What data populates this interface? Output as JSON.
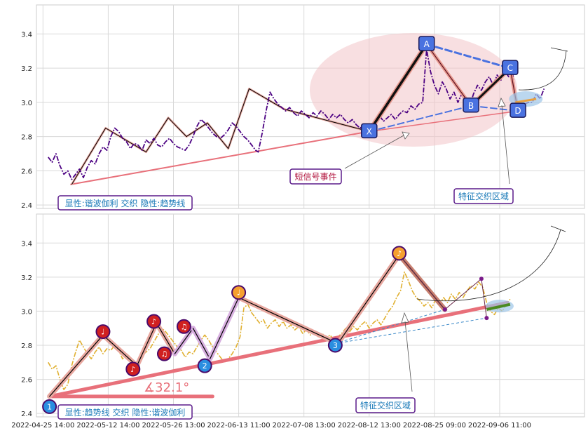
{
  "chart_data": {
    "type": "line",
    "x_tick_labels": [
      "2022-04-25 14:00",
      "2022-05-12 14:00",
      "2022-05-26 13:00",
      "2022-06-13 11:00",
      "2022-07-08 13:00",
      "2022-08-12 13:00",
      "2022-08-25 09:00",
      "2022-09-06 11:00"
    ],
    "y_ticks": [
      2.4,
      2.6,
      2.8,
      3.0,
      3.2,
      3.4
    ],
    "ylim": [
      2.38,
      3.57
    ],
    "grid": true,
    "colors": {
      "top_price": "#4b0082",
      "bottom_price": "#e0b030",
      "trend": "#e8707a",
      "pattern_blue": "#4a72e0",
      "marker_red": "#d02020",
      "marker_orange": "#f5a030",
      "marker_blue": "#2a8ee0",
      "box_border": "#5a1a8a",
      "box_text": "#1a7ab8",
      "annot_text": "#b0103a"
    },
    "panels": [
      {
        "legend": "显性:谐波伽利 交织 隐性:趋势线",
        "annotations": [
          "短信号事件",
          "特征交织区域"
        ],
        "pattern_labels": [
          "X",
          "A",
          "B",
          "C",
          "D"
        ],
        "price": [
          [
            0.4,
            2.68
          ],
          [
            0.7,
            2.65
          ],
          [
            1.0,
            2.7
          ],
          [
            1.3,
            2.63
          ],
          [
            1.6,
            2.58
          ],
          [
            1.9,
            2.6
          ],
          [
            2.2,
            2.55
          ],
          [
            2.5,
            2.58
          ],
          [
            2.8,
            2.61
          ],
          [
            3.1,
            2.56
          ],
          [
            3.4,
            2.62
          ],
          [
            3.7,
            2.66
          ],
          [
            4.0,
            2.64
          ],
          [
            4.3,
            2.7
          ],
          [
            4.6,
            2.74
          ],
          [
            4.9,
            2.72
          ],
          [
            5.2,
            2.8
          ],
          [
            5.5,
            2.85
          ],
          [
            5.8,
            2.83
          ],
          [
            6.1,
            2.79
          ],
          [
            6.4,
            2.77
          ],
          [
            6.7,
            2.73
          ],
          [
            7.0,
            2.76
          ],
          [
            7.3,
            2.75
          ],
          [
            7.6,
            2.72
          ],
          [
            7.9,
            2.78
          ],
          [
            8.2,
            2.76
          ],
          [
            8.5,
            2.79
          ],
          [
            8.8,
            2.75
          ],
          [
            9.1,
            2.74
          ],
          [
            9.4,
            2.77
          ],
          [
            9.7,
            2.79
          ],
          [
            10.0,
            2.76
          ],
          [
            10.3,
            2.74
          ],
          [
            10.6,
            2.73
          ],
          [
            10.9,
            2.72
          ],
          [
            11.2,
            2.75
          ],
          [
            11.5,
            2.8
          ],
          [
            11.8,
            2.86
          ],
          [
            12.1,
            2.9
          ],
          [
            12.4,
            2.88
          ],
          [
            12.7,
            2.85
          ],
          [
            13.0,
            2.82
          ],
          [
            13.3,
            2.8
          ],
          [
            13.6,
            2.79
          ],
          [
            13.9,
            2.81
          ],
          [
            14.2,
            2.84
          ],
          [
            14.5,
            2.88
          ],
          [
            14.8,
            2.86
          ],
          [
            15.1,
            2.83
          ],
          [
            15.4,
            2.8
          ],
          [
            15.7,
            2.78
          ],
          [
            16.0,
            2.75
          ],
          [
            16.3,
            2.72
          ],
          [
            16.5,
            2.71
          ],
          [
            16.8,
            2.82
          ],
          [
            17.1,
            2.95
          ],
          [
            17.4,
            3.06
          ],
          [
            17.7,
            3.02
          ],
          [
            18.0,
            2.99
          ],
          [
            18.3,
            2.97
          ],
          [
            18.6,
            2.95
          ],
          [
            18.9,
            2.97
          ],
          [
            19.2,
            2.94
          ],
          [
            19.5,
            2.92
          ],
          [
            19.8,
            2.95
          ],
          [
            20.1,
            2.93
          ],
          [
            20.4,
            2.91
          ],
          [
            20.7,
            2.94
          ],
          [
            21.0,
            2.92
          ],
          [
            21.3,
            2.95
          ],
          [
            21.6,
            2.93
          ],
          [
            21.9,
            2.9
          ],
          [
            22.2,
            2.93
          ],
          [
            22.5,
            2.91
          ],
          [
            22.8,
            2.93
          ],
          [
            23.1,
            2.9
          ],
          [
            23.4,
            2.88
          ],
          [
            23.7,
            2.9
          ],
          [
            24.0,
            2.87
          ],
          [
            24.3,
            2.85
          ],
          [
            24.6,
            2.87
          ],
          [
            24.9,
            2.84
          ],
          [
            25.2,
            2.86
          ],
          [
            25.5,
            2.88
          ],
          [
            25.8,
            2.92
          ],
          [
            26.1,
            2.89
          ],
          [
            26.4,
            2.91
          ],
          [
            26.7,
            2.93
          ],
          [
            27.0,
            2.9
          ],
          [
            27.3,
            2.93
          ],
          [
            27.6,
            2.95
          ],
          [
            27.9,
            2.94
          ],
          [
            28.2,
            2.98
          ],
          [
            28.5,
            2.96
          ],
          [
            28.8,
            2.99
          ],
          [
            29.1,
            3.0
          ],
          [
            29.4,
            3.31
          ],
          [
            29.7,
            3.18
          ],
          [
            30.0,
            3.1
          ],
          [
            30.3,
            3.05
          ],
          [
            30.6,
            3.12
          ],
          [
            30.9,
            3.08
          ],
          [
            31.2,
            3.02
          ],
          [
            31.5,
            3.06
          ],
          [
            31.8,
            3.0
          ],
          [
            32.1,
            3.05
          ],
          [
            32.4,
            2.99
          ],
          [
            32.7,
            2.98
          ],
          [
            33.0,
            3.05
          ],
          [
            33.3,
            3.1
          ],
          [
            33.6,
            3.07
          ],
          [
            33.9,
            3.12
          ],
          [
            34.2,
            3.15
          ],
          [
            34.5,
            3.1
          ],
          [
            34.8,
            3.16
          ],
          [
            35.1,
            3.13
          ],
          [
            35.4,
            3.18
          ],
          [
            35.7,
            3.15
          ],
          [
            36.0,
            3.17
          ],
          [
            36.3,
            2.98
          ],
          [
            36.6,
            2.96
          ],
          [
            36.9,
            2.99
          ],
          [
            37.2,
            3.0
          ],
          [
            37.5,
            3.0
          ],
          [
            37.8,
            3.05
          ],
          [
            38.1,
            3.02
          ],
          [
            38.4,
            3.08
          ]
        ],
        "zigzag": [
          [
            2.2,
            2.52
          ],
          [
            4.8,
            2.85
          ],
          [
            7.9,
            2.71
          ],
          [
            9.6,
            2.91
          ],
          [
            11.0,
            2.8
          ],
          [
            12.6,
            2.88
          ],
          [
            14.2,
            2.73
          ],
          [
            15.8,
            3.08
          ],
          [
            18.5,
            2.96
          ],
          [
            24.5,
            2.84
          ],
          [
            28.5,
            2.99
          ],
          [
            29.5,
            3.33
          ],
          [
            32.8,
            2.98
          ],
          [
            35.7,
            3.18
          ],
          [
            36.2,
            2.99
          ],
          [
            37.5,
            3.01
          ]
        ],
        "points": {
          "X": [
            25.0,
            2.83
          ],
          "A": [
            29.4,
            3.34
          ],
          "B": [
            32.8,
            2.98
          ],
          "C": [
            35.8,
            3.2
          ],
          "D": [
            36.4,
            2.95
          ]
        },
        "trend": [
          [
            2.1,
            2.52
          ],
          [
            25.0,
            2.83
          ]
        ]
      },
      {
        "legend": "显性:趋势线 交织 隐性:谐波伽利",
        "annotations": [
          "特征交织区域"
        ],
        "angle_label": "∡32.1°",
        "marker_labels": [
          "1",
          "2",
          "3"
        ],
        "note_symbols": [
          "♩",
          "♪",
          "♫"
        ],
        "price": [
          [
            0.4,
            2.7
          ],
          [
            0.7,
            2.66
          ],
          [
            1.0,
            2.68
          ],
          [
            1.3,
            2.6
          ],
          [
            1.6,
            2.54
          ],
          [
            1.9,
            2.57
          ],
          [
            2.2,
            2.68
          ],
          [
            2.5,
            2.76
          ],
          [
            2.8,
            2.83
          ],
          [
            3.1,
            2.79
          ],
          [
            3.4,
            2.75
          ],
          [
            3.7,
            2.72
          ],
          [
            4.0,
            2.76
          ],
          [
            4.3,
            2.79
          ],
          [
            4.6,
            2.75
          ],
          [
            4.9,
            2.78
          ],
          [
            5.2,
            2.77
          ],
          [
            5.5,
            2.8
          ],
          [
            5.8,
            2.77
          ],
          [
            6.1,
            2.72
          ],
          [
            6.4,
            2.75
          ],
          [
            6.7,
            2.73
          ],
          [
            7.0,
            2.69
          ],
          [
            7.3,
            2.71
          ],
          [
            7.6,
            2.74
          ],
          [
            7.9,
            2.76
          ],
          [
            8.2,
            2.78
          ],
          [
            8.5,
            2.82
          ],
          [
            8.8,
            2.86
          ],
          [
            9.1,
            2.9
          ],
          [
            9.4,
            2.88
          ],
          [
            9.7,
            2.85
          ],
          [
            10.0,
            2.82
          ],
          [
            10.3,
            2.79
          ],
          [
            10.6,
            2.77
          ],
          [
            10.9,
            2.73
          ],
          [
            11.2,
            2.76
          ],
          [
            11.5,
            2.75
          ],
          [
            11.8,
            2.79
          ],
          [
            12.1,
            2.83
          ],
          [
            12.4,
            2.86
          ],
          [
            12.7,
            2.83
          ],
          [
            13.0,
            2.79
          ],
          [
            13.3,
            2.76
          ],
          [
            13.6,
            2.73
          ],
          [
            13.9,
            2.7
          ],
          [
            14.2,
            2.72
          ],
          [
            14.5,
            2.75
          ],
          [
            14.8,
            2.79
          ],
          [
            15.1,
            2.85
          ],
          [
            15.4,
            3.02
          ],
          [
            15.7,
            3.04
          ],
          [
            16.0,
            2.99
          ],
          [
            16.3,
            2.96
          ],
          [
            16.6,
            2.93
          ],
          [
            16.9,
            2.95
          ],
          [
            17.2,
            2.9
          ],
          [
            17.5,
            2.93
          ],
          [
            17.8,
            2.95
          ],
          [
            18.1,
            2.91
          ],
          [
            18.4,
            2.94
          ],
          [
            18.7,
            2.9
          ],
          [
            19.0,
            2.92
          ],
          [
            19.3,
            2.89
          ],
          [
            19.6,
            2.91
          ],
          [
            19.9,
            2.87
          ],
          [
            20.2,
            2.89
          ],
          [
            20.5,
            2.86
          ],
          [
            20.8,
            2.88
          ],
          [
            21.1,
            2.85
          ],
          [
            21.4,
            2.87
          ],
          [
            21.7,
            2.84
          ],
          [
            22.0,
            2.86
          ],
          [
            22.3,
            2.83
          ],
          [
            22.6,
            2.85
          ],
          [
            22.9,
            2.87
          ],
          [
            23.2,
            2.9
          ],
          [
            23.5,
            2.88
          ],
          [
            23.8,
            2.91
          ],
          [
            24.1,
            2.89
          ],
          [
            24.4,
            2.92
          ],
          [
            24.7,
            2.94
          ],
          [
            25.0,
            2.9
          ],
          [
            25.3,
            2.93
          ],
          [
            25.6,
            2.95
          ],
          [
            25.9,
            2.92
          ],
          [
            26.2,
            2.96
          ],
          [
            26.5,
            3.0
          ],
          [
            26.8,
            3.03
          ],
          [
            27.1,
            3.08
          ],
          [
            27.4,
            3.12
          ],
          [
            27.7,
            3.23
          ],
          [
            28.0,
            3.18
          ],
          [
            28.3,
            3.12
          ],
          [
            28.6,
            3.08
          ],
          [
            28.9,
            3.06
          ],
          [
            29.2,
            3.03
          ],
          [
            29.5,
            3.05
          ],
          [
            29.8,
            3.02
          ],
          [
            30.1,
            3.07
          ],
          [
            30.4,
            3.04
          ],
          [
            30.7,
            3.08
          ],
          [
            31.0,
            3.05
          ],
          [
            31.3,
            3.1
          ],
          [
            31.6,
            3.07
          ],
          [
            31.9,
            3.11
          ],
          [
            32.2,
            3.08
          ],
          [
            32.5,
            3.12
          ],
          [
            32.8,
            3.15
          ],
          [
            33.1,
            3.13
          ],
          [
            33.4,
            3.17
          ],
          [
            33.7,
            3.14
          ],
          [
            34.0,
            3.05
          ],
          [
            34.3,
            3.0
          ],
          [
            34.6,
            2.98
          ],
          [
            34.9,
            3.02
          ],
          [
            35.2,
            3.0
          ],
          [
            35.5,
            3.04
          ],
          [
            35.8,
            3.07
          ]
        ],
        "zigzag": [
          [
            0.5,
            2.5
          ],
          [
            4.6,
            2.86
          ],
          [
            7.2,
            2.68
          ],
          [
            8.7,
            2.93
          ],
          [
            10.1,
            2.75
          ],
          [
            11.5,
            2.9
          ],
          [
            12.8,
            2.72
          ],
          [
            15.0,
            3.08
          ],
          [
            22.6,
            2.81
          ],
          [
            27.3,
            3.33
          ],
          [
            30.8,
            3.01
          ],
          [
            33.6,
            3.19
          ],
          [
            34.0,
            2.96
          ],
          [
            35.6,
            3.04
          ]
        ],
        "trend": [
          [
            0.5,
            2.5
          ],
          [
            35.6,
            3.05
          ]
        ],
        "markers": [
          {
            "x": 0.5,
            "y": 2.44,
            "label": "1",
            "kind": "num"
          },
          {
            "x": 4.6,
            "y": 2.88,
            "label": "♩",
            "kind": "red"
          },
          {
            "x": 6.9,
            "y": 2.66,
            "label": "♪",
            "kind": "red"
          },
          {
            "x": 8.5,
            "y": 2.94,
            "label": "♪",
            "kind": "red"
          },
          {
            "x": 9.3,
            "y": 2.75,
            "label": "♫",
            "kind": "red"
          },
          {
            "x": 10.8,
            "y": 2.91,
            "label": "♫",
            "kind": "red"
          },
          {
            "x": 12.4,
            "y": 2.68,
            "label": "2",
            "kind": "num"
          },
          {
            "x": 15.0,
            "y": 3.11,
            "label": "♩",
            "kind": "orange"
          },
          {
            "x": 22.4,
            "y": 2.8,
            "label": "3",
            "kind": "num"
          },
          {
            "x": 27.3,
            "y": 3.34,
            "label": "♪",
            "kind": "orange"
          }
        ]
      }
    ]
  }
}
